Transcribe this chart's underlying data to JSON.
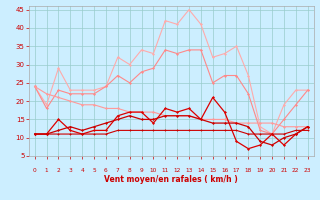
{
  "title": "",
  "xlabel": "Vent moyen/en rafales ( km/h )",
  "xlim": [
    -0.5,
    23.5
  ],
  "ylim": [
    5,
    46
  ],
  "yticks": [
    5,
    10,
    15,
    20,
    25,
    30,
    35,
    40,
    45
  ],
  "xticks": [
    0,
    1,
    2,
    3,
    4,
    5,
    6,
    7,
    8,
    9,
    10,
    11,
    12,
    13,
    14,
    15,
    16,
    17,
    18,
    19,
    20,
    21,
    22,
    23
  ],
  "background_color": "#cceeff",
  "grid_color": "#99cccc",
  "lines": [
    {
      "x": [
        0,
        1,
        2,
        3,
        4,
        5,
        6,
        7,
        8,
        9,
        10,
        11,
        12,
        13,
        14,
        15,
        16,
        17,
        18,
        19,
        20,
        21,
        22,
        23
      ],
      "y": [
        24,
        19,
        29,
        23,
        23,
        23,
        24,
        32,
        30,
        34,
        33,
        42,
        41,
        45,
        41,
        32,
        33,
        35,
        27,
        13,
        11,
        19,
        23,
        23
      ],
      "color": "#ffaaaa",
      "lw": 0.8,
      "marker": "D",
      "ms": 1.5
    },
    {
      "x": [
        0,
        1,
        2,
        3,
        4,
        5,
        6,
        7,
        8,
        9,
        10,
        11,
        12,
        13,
        14,
        15,
        16,
        17,
        18,
        19,
        20,
        21,
        22,
        23
      ],
      "y": [
        24,
        18,
        23,
        22,
        22,
        22,
        24,
        27,
        25,
        28,
        29,
        34,
        33,
        34,
        34,
        25,
        27,
        27,
        22,
        12,
        11,
        15,
        19,
        23
      ],
      "color": "#ff8888",
      "lw": 0.8,
      "marker": "D",
      "ms": 1.5
    },
    {
      "x": [
        0,
        1,
        2,
        3,
        4,
        5,
        6,
        7,
        8,
        9,
        10,
        11,
        12,
        13,
        14,
        15,
        16,
        17,
        18,
        19,
        20,
        21,
        22,
        23
      ],
      "y": [
        24,
        22,
        21,
        20,
        19,
        19,
        18,
        18,
        17,
        17,
        17,
        16,
        16,
        16,
        15,
        15,
        15,
        14,
        14,
        14,
        14,
        13,
        13,
        13
      ],
      "color": "#ff9999",
      "lw": 0.8,
      "marker": "D",
      "ms": 1.5
    },
    {
      "x": [
        0,
        1,
        2,
        3,
        4,
        5,
        6,
        7,
        8,
        9,
        10,
        11,
        12,
        13,
        14,
        15,
        16,
        17,
        18,
        19,
        20,
        21,
        22,
        23
      ],
      "y": [
        11,
        11,
        15,
        12,
        11,
        12,
        12,
        16,
        17,
        17,
        14,
        18,
        17,
        18,
        15,
        21,
        17,
        9,
        7,
        8,
        11,
        8,
        11,
        13
      ],
      "color": "#dd0000",
      "lw": 0.9,
      "marker": "D",
      "ms": 1.5
    },
    {
      "x": [
        0,
        1,
        2,
        3,
        4,
        5,
        6,
        7,
        8,
        9,
        10,
        11,
        12,
        13,
        14,
        15,
        16,
        17,
        18,
        19,
        20,
        21,
        22,
        23
      ],
      "y": [
        11,
        11,
        12,
        13,
        12,
        13,
        14,
        15,
        16,
        15,
        15,
        16,
        16,
        16,
        15,
        14,
        14,
        14,
        13,
        9,
        8,
        10,
        11,
        13
      ],
      "color": "#cc0000",
      "lw": 0.9,
      "marker": "D",
      "ms": 1.5
    },
    {
      "x": [
        0,
        1,
        2,
        3,
        4,
        5,
        6,
        7,
        8,
        9,
        10,
        11,
        12,
        13,
        14,
        15,
        16,
        17,
        18,
        19,
        20,
        21,
        22,
        23
      ],
      "y": [
        11,
        11,
        11,
        11,
        11,
        11,
        11,
        12,
        12,
        12,
        12,
        12,
        12,
        12,
        12,
        12,
        12,
        12,
        11,
        11,
        11,
        11,
        12,
        12
      ],
      "color": "#cc0000",
      "lw": 0.8,
      "marker": "D",
      "ms": 1.2
    }
  ],
  "arrow_color": "#cc0000",
  "xlabel_color": "#cc0000",
  "tick_color": "#cc0000",
  "xlabel_fontsize": 5.5,
  "ytick_fontsize": 5.0,
  "xtick_fontsize": 4.2
}
